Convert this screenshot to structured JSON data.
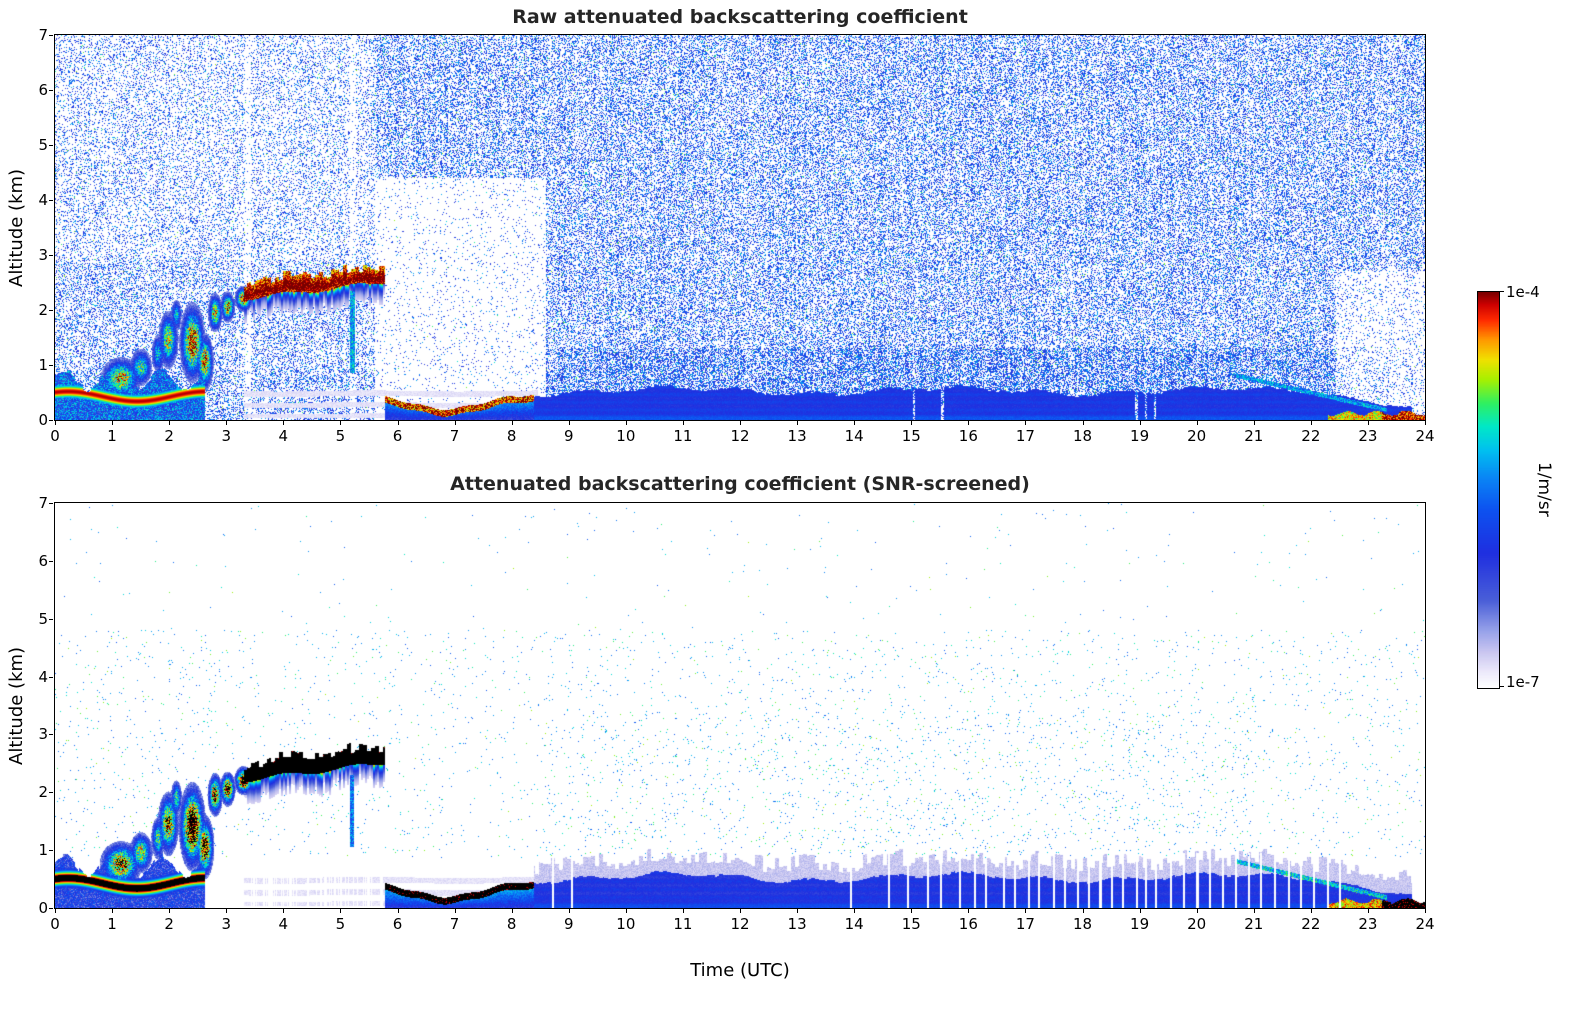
{
  "figure": {
    "background": "#ffffff",
    "title_color": "#262626",
    "axis_color": "#000000"
  },
  "colorbar": {
    "units": "1/m/sr",
    "max_label": "1e-4",
    "min_label": "1e-7",
    "stops": [
      [
        0.0,
        "#ffffff"
      ],
      [
        0.04,
        "#ece9fb"
      ],
      [
        0.09,
        "#c9c6f0"
      ],
      [
        0.14,
        "#9aa4ea"
      ],
      [
        0.22,
        "#4a5fd8"
      ],
      [
        0.34,
        "#1f2fe0"
      ],
      [
        0.45,
        "#0d52f0"
      ],
      [
        0.53,
        "#0a85f5"
      ],
      [
        0.6,
        "#00c0f0"
      ],
      [
        0.66,
        "#00e8c8"
      ],
      [
        0.72,
        "#30f060"
      ],
      [
        0.78,
        "#a8f000"
      ],
      [
        0.83,
        "#f0e000"
      ],
      [
        0.88,
        "#ff9800"
      ],
      [
        0.93,
        "#ff2a00"
      ],
      [
        0.97,
        "#cc0000"
      ],
      [
        1.0,
        "#7a0000"
      ]
    ]
  },
  "chart_data": [
    {
      "type": "heatmap",
      "title": "Raw attenuated backscattering coefficient",
      "xlabel": "",
      "ylabel": "Altitude (km)",
      "xlim": [
        0,
        24
      ],
      "ylim": [
        0,
        7
      ],
      "xticks": [
        0,
        1,
        2,
        3,
        4,
        5,
        6,
        7,
        8,
        9,
        10,
        11,
        12,
        13,
        14,
        15,
        16,
        17,
        18,
        19,
        20,
        21,
        22,
        23,
        24
      ],
      "yticks": [
        0,
        1,
        2,
        3,
        4,
        5,
        6,
        7
      ],
      "value_scale": "log",
      "value_min": "1e-7",
      "value_max": "1e-4",
      "units": "1/m/sr",
      "seed": 101,
      "saturate_black": false,
      "noise": {
        "base": 0.34,
        "vlo": 0.25,
        "vspan": 0.33,
        "green_p": 0.03,
        "col_amp": 0.5,
        "regions": [
          {
            "t": [
              5.6,
              8.6
            ],
            "z": [
              0.0,
              4.4
            ],
            "f": 0.13
          },
          {
            "t": [
              0,
              5.6
            ],
            "z": [
              2.9,
              7
            ],
            "f": 0.55
          },
          {
            "t": [
              22.45,
              24
            ],
            "z": [
              0.15,
              2.7
            ],
            "f": 0.3
          },
          {
            "t": [
              8.38,
              23.8
            ],
            "z": [
              0.3,
              1.3
            ],
            "f": 1.5
          },
          {
            "t": [
              0,
              5.6
            ],
            "z": [
              0.9,
              2.9
            ],
            "f": 0.8
          }
        ],
        "gap_cols": [
          {
            "t": 3.37,
            "w": 0.05,
            "f": 0.25
          },
          {
            "t": 5.22,
            "w": 0.05,
            "f": 0.3
          }
        ]
      },
      "features": [
        {
          "kind": "pale_bands",
          "t": [
            3.3,
            8.45
          ],
          "z": [
            0.02,
            0.55
          ],
          "v": 0.05,
          "stripe_freq": 30
        },
        {
          "kind": "surface_layer",
          "t": [
            0,
            2.62
          ],
          "core_alt": 0.42,
          "core_amp": 0.09,
          "core_freq": 2.6,
          "core_phase": 1.0,
          "peak": 0.98,
          "ridge_sigma": 0.1,
          "fill": 0.45,
          "top_base": 0.72,
          "top_amp": 0.18,
          "top_freq": 7.3
        },
        {
          "kind": "puffs",
          "items": [
            [
              1.15,
              0.75,
              0.28,
              0.3,
              0.85
            ],
            [
              1.5,
              0.95,
              0.16,
              0.28,
              0.7
            ],
            [
              1.8,
              1.2,
              0.1,
              0.3,
              0.6
            ],
            [
              1.98,
              1.45,
              0.14,
              0.42,
              0.8
            ],
            [
              2.12,
              1.9,
              0.08,
              0.25,
              0.6
            ],
            [
              2.4,
              1.4,
              0.17,
              0.55,
              1.0
            ],
            [
              2.62,
              1.05,
              0.12,
              0.4,
              0.92
            ],
            [
              2.8,
              1.95,
              0.1,
              0.28,
              0.85
            ],
            [
              3.02,
              2.05,
              0.1,
              0.22,
              0.9
            ],
            [
              3.3,
              2.2,
              0.12,
              0.18,
              0.95
            ]
          ]
        },
        {
          "kind": "cloud_band",
          "t": [
            3.3,
            5.78
          ],
          "base0": 2.2,
          "base1": 2.5,
          "wobble": 0.04,
          "wfreq": 5.1,
          "thick": 0.3,
          "peak": 1.0,
          "virga": 0.65,
          "virga_depth": 0.45
        },
        {
          "kind": "vstreak",
          "t": 5.2,
          "w": 0.045,
          "z": [
            0.85,
            2.35
          ],
          "v": 0.55
        },
        {
          "kind": "shallow_layer",
          "t": [
            5.78,
            8.38
          ],
          "tmid": 6.85,
          "sigma": 0.85,
          "base_top": 0.44,
          "dip": 0.27,
          "peak": 0.95,
          "cap": 0.1,
          "grad_lo": 0.3,
          "grad_hi": 0.62
        },
        {
          "kind": "aerosol",
          "t": [
            8.38,
            23.78
          ],
          "top": 0.52,
          "amp1": 0.06,
          "f1": 1.3,
          "amp2": 0.04,
          "f2": 4.7,
          "val": 0.36,
          "bottom_boost": 0.08,
          "stri_amp": 0.03,
          "stri_freq": 45,
          "decline_t": 22.1,
          "decline_to": 0.45,
          "fringe": 0
        },
        {
          "kind": "dstreak",
          "t": [
            20.7,
            23.35
          ],
          "z0": 0.8,
          "z1": 0.17,
          "w": 0.04,
          "v": 0.55
        },
        {
          "kind": "surface_hot",
          "t": [
            22.3,
            24
          ],
          "top_base": 0.1,
          "top_amp": 0.04,
          "v": 0.82,
          "hot_t": 23.25,
          "hot_v": 0.97
        }
      ],
      "gaps": {
        "times": [
          15.05,
          15.55,
          18.95,
          19.12,
          19.28
        ],
        "width": 0.02,
        "top": 0.72
      }
    },
    {
      "type": "heatmap",
      "title": "Attenuated backscattering coefficient (SNR-screened)",
      "xlabel": "Time (UTC)",
      "ylabel": "Altitude (km)",
      "xlim": [
        0,
        24
      ],
      "ylim": [
        0,
        7
      ],
      "xticks": [
        0,
        1,
        2,
        3,
        4,
        5,
        6,
        7,
        8,
        9,
        10,
        11,
        12,
        13,
        14,
        15,
        16,
        17,
        18,
        19,
        20,
        21,
        22,
        23,
        24
      ],
      "yticks": [
        0,
        1,
        2,
        3,
        4,
        5,
        6,
        7
      ],
      "value_scale": "log",
      "value_min": "1e-7",
      "value_max": "1e-4",
      "units": "1/m/sr",
      "seed": 202,
      "saturate_black": true,
      "noise": {
        "base": 0.012,
        "vlo": 0.45,
        "vspan": 0.15,
        "green_p": 0.35,
        "col_amp": 0.3,
        "regions": [
          {
            "t": [
              0,
              24
            ],
            "z": [
              0,
              0.85
            ],
            "f": 0
          },
          {
            "t": [
              0,
              24
            ],
            "z": [
              4.8,
              7
            ],
            "f": 0.12
          },
          {
            "t": [
              8.6,
              21
            ],
            "z": [
              0.9,
              3.4
            ],
            "f": 1.7
          },
          {
            "t": [
              2.8,
              8.6
            ],
            "z": [
              0.85,
              4.8
            ],
            "f": 0.8
          }
        ],
        "gap_cols": []
      },
      "features": [
        {
          "kind": "pale_bands",
          "t": [
            3.3,
            8.45
          ],
          "z": [
            0.02,
            0.55
          ],
          "v": 0.05,
          "stripe_freq": 30
        },
        {
          "kind": "surface_layer",
          "t": [
            0,
            2.62
          ],
          "core_alt": 0.42,
          "core_amp": 0.09,
          "core_freq": 2.6,
          "core_phase": 1.0,
          "peak": 1.15,
          "ridge_sigma": 0.1,
          "fill": 0.32,
          "top_base": 0.72,
          "top_amp": 0.18,
          "top_freq": 7.3
        },
        {
          "kind": "puffs",
          "items": [
            [
              1.15,
              0.75,
              0.28,
              0.3,
              0.95
            ],
            [
              1.5,
              0.95,
              0.16,
              0.28,
              0.8
            ],
            [
              1.8,
              1.2,
              0.1,
              0.3,
              0.7
            ],
            [
              1.98,
              1.45,
              0.14,
              0.42,
              0.95
            ],
            [
              2.12,
              1.9,
              0.08,
              0.25,
              0.7
            ],
            [
              2.4,
              1.4,
              0.17,
              0.55,
              1.2
            ],
            [
              2.62,
              1.05,
              0.12,
              0.4,
              1.1
            ],
            [
              2.8,
              1.95,
              0.1,
              0.28,
              1.0
            ],
            [
              3.02,
              2.05,
              0.1,
              0.22,
              1.1
            ],
            [
              3.3,
              2.2,
              0.12,
              0.18,
              1.15
            ]
          ]
        },
        {
          "kind": "cloud_band",
          "t": [
            3.3,
            5.78
          ],
          "base0": 2.2,
          "base1": 2.5,
          "wobble": 0.04,
          "wfreq": 5.1,
          "thick": 0.3,
          "peak": 1.3,
          "virga": 0.6,
          "virga_depth": 0.45
        },
        {
          "kind": "vstreak",
          "t": 5.2,
          "w": 0.04,
          "z": [
            1.05,
            2.3
          ],
          "v": 0.5
        },
        {
          "kind": "shallow_layer",
          "t": [
            5.78,
            8.38
          ],
          "tmid": 6.85,
          "sigma": 0.85,
          "base_top": 0.44,
          "dip": 0.27,
          "peak": 1.2,
          "cap": 0.1,
          "grad_lo": 0.32,
          "grad_hi": 0.65
        },
        {
          "kind": "aerosol",
          "t": [
            8.38,
            23.78
          ],
          "top": 0.52,
          "amp1": 0.06,
          "f1": 1.3,
          "amp2": 0.04,
          "f2": 4.7,
          "val": 0.34,
          "bottom_boost": 0.08,
          "stri_amp": 0.03,
          "stri_freq": 45,
          "decline_t": 22.1,
          "decline_to": 0.45,
          "fringe": 0.3
        },
        {
          "kind": "dstreak",
          "t": [
            20.7,
            23.35
          ],
          "z0": 0.8,
          "z1": 0.17,
          "w": 0.04,
          "v": 0.6
        },
        {
          "kind": "surface_hot",
          "t": [
            22.3,
            24
          ],
          "top_base": 0.1,
          "top_amp": 0.04,
          "v": 0.85,
          "hot_t": 23.25,
          "hot_v": 1.12
        }
      ],
      "gaps": {
        "times": [
          8.72,
          9.06,
          13.95,
          14.62,
          14.95,
          15.3,
          15.52,
          15.86,
          16.12,
          16.32,
          16.62,
          16.82,
          17.06,
          17.24,
          17.5,
          17.7,
          17.92,
          18.12,
          18.32,
          18.52,
          18.72,
          18.96,
          19.12,
          19.3,
          19.56,
          19.78,
          20.02,
          20.24,
          20.46,
          20.7,
          20.92,
          21.14,
          21.38,
          21.62,
          21.84,
          22.06,
          22.3,
          22.52
        ],
        "width": 0.018,
        "top": 0.95
      },
      "dropout": {
        "t": [
          3.35,
          5.8
        ],
        "z_top": 1.05,
        "prob": 0.32
      }
    }
  ]
}
